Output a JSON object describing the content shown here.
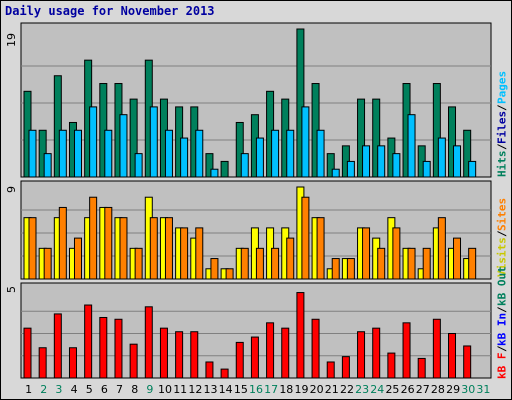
{
  "title": "Daily usage for November 2013",
  "colors": {
    "hits": "#00805c",
    "files": "#00c0ff",
    "visits": "#ffff00",
    "sites": "#ff8000",
    "kbytes_in": "#0000ff",
    "kbytes_out": "#00805c",
    "kbytes_f": "#ff0000",
    "weekend": "#00805c",
    "weekday": "#000000",
    "plot_bg": "#c0c0c0"
  },
  "chart_data": {
    "type": "bar",
    "title": "Daily usage for November 2013",
    "categories": [
      "1",
      "2",
      "3",
      "4",
      "5",
      "6",
      "7",
      "8",
      "9",
      "10",
      "11",
      "12",
      "13",
      "14",
      "15",
      "16",
      "17",
      "18",
      "19",
      "20",
      "21",
      "22",
      "23",
      "24",
      "25",
      "26",
      "27",
      "28",
      "29",
      "30",
      "31"
    ],
    "weekend_days": [
      "2",
      "3",
      "9",
      "16",
      "17",
      "23",
      "24",
      "30",
      "31"
    ],
    "panels": [
      {
        "key": "top",
        "ymax": "19",
        "ylim": [
          0,
          19
        ],
        "legend": [
          {
            "text": "Hits",
            "color": "#00805c"
          },
          {
            "text": "/",
            "color": "#000000"
          },
          {
            "text": "Files",
            "color": "#0000a0"
          },
          {
            "text": "/",
            "color": "#000000"
          },
          {
            "text": "Pages",
            "color": "#00c0ff"
          }
        ],
        "series": [
          {
            "name": "Hits",
            "color": "#00805c",
            "values": [
              11,
              6,
              13,
              7,
              15,
              12,
              12,
              10,
              15,
              10,
              9,
              9,
              3,
              2,
              7,
              8,
              11,
              10,
              19,
              12,
              3,
              4,
              10,
              10,
              5,
              12,
              4,
              12,
              9,
              6,
              0
            ]
          },
          {
            "name": "Pages",
            "color": "#00c0ff",
            "values": [
              6,
              3,
              6,
              6,
              9,
              6,
              8,
              3,
              9,
              6,
              5,
              6,
              1,
              0,
              3,
              5,
              6,
              6,
              9,
              6,
              1,
              2,
              4,
              4,
              3,
              8,
              2,
              5,
              4,
              2,
              0
            ]
          }
        ]
      },
      {
        "key": "middle",
        "ymax": "9",
        "ylim": [
          0,
          9
        ],
        "legend": [
          {
            "text": "Visits",
            "color": "#c8c800"
          },
          {
            "text": "/",
            "color": "#000000"
          },
          {
            "text": "Sites",
            "color": "#ff8000"
          }
        ],
        "series": [
          {
            "name": "Visits",
            "color": "#ffff00",
            "values": [
              6,
              3,
              6,
              3,
              6,
              7,
              6,
              3,
              8,
              6,
              5,
              4,
              1,
              1,
              3,
              5,
              5,
              5,
              9,
              6,
              1,
              2,
              5,
              4,
              6,
              3,
              1,
              5,
              3,
              2,
              0
            ]
          },
          {
            "name": "Sites",
            "color": "#ff8000",
            "values": [
              6,
              3,
              7,
              4,
              8,
              7,
              6,
              3,
              6,
              6,
              5,
              5,
              2,
              1,
              3,
              3,
              3,
              4,
              8,
              6,
              2,
              2,
              5,
              3,
              5,
              3,
              3,
              6,
              4,
              3,
              0
            ]
          }
        ]
      },
      {
        "key": "bottom",
        "ymax": "5",
        "ylim": [
          0,
          5
        ],
        "legend": [
          {
            "text": "kB F",
            "color": "#ff0000"
          },
          {
            "text": "/",
            "color": "#000000"
          },
          {
            "text": "kB In",
            "color": "#0000ff"
          },
          {
            "text": "/",
            "color": "#000000"
          },
          {
            "text": "kB Out",
            "color": "#00805c"
          }
        ],
        "series": [
          {
            "name": "kB F",
            "color": "#ff0000",
            "values": [
              2.8,
              1.7,
              3.6,
              1.7,
              4.1,
              3.4,
              3.3,
              1.9,
              4.0,
              2.8,
              2.6,
              2.6,
              0.9,
              0.5,
              2.0,
              2.3,
              3.1,
              2.8,
              4.8,
              3.3,
              0.9,
              1.2,
              2.6,
              2.8,
              1.4,
              3.1,
              1.1,
              3.3,
              2.5,
              1.8,
              0
            ]
          }
        ]
      }
    ]
  }
}
